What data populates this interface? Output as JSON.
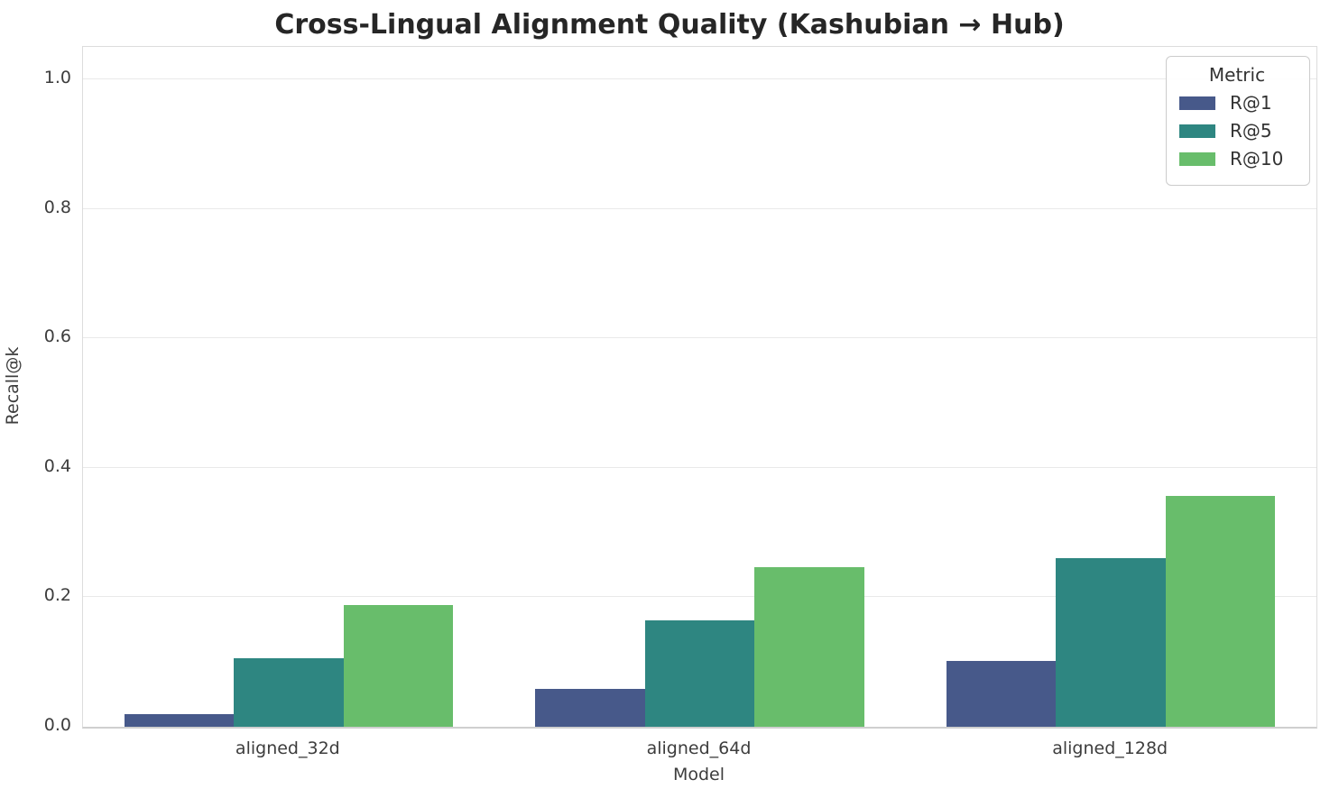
{
  "chart_data": {
    "type": "bar",
    "title": "Cross-Lingual Alignment Quality (Kashubian → Hub)",
    "xlabel": "Model",
    "ylabel": "Recall@k",
    "categories": [
      "aligned_32d",
      "aligned_64d",
      "aligned_128d"
    ],
    "series": [
      {
        "name": "R@1",
        "color": "#47598a",
        "values": [
          0.019,
          0.058,
          0.102
        ]
      },
      {
        "name": "R@5",
        "color": "#2e8681",
        "values": [
          0.106,
          0.164,
          0.261
        ]
      },
      {
        "name": "R@10",
        "color": "#68bd6b",
        "values": [
          0.188,
          0.247,
          0.356
        ]
      }
    ],
    "ylim": [
      0,
      1.05
    ],
    "yticks": [
      0.0,
      0.2,
      0.4,
      0.6,
      0.8,
      1.0
    ],
    "ytick_labels": [
      "0.0",
      "0.2",
      "0.4",
      "0.6",
      "0.8",
      "1.0"
    ],
    "grid": true,
    "grid_color": "#e9e9e9",
    "legend": {
      "title": "Metric",
      "position": "upper right"
    },
    "group_width_fraction": 0.8
  }
}
